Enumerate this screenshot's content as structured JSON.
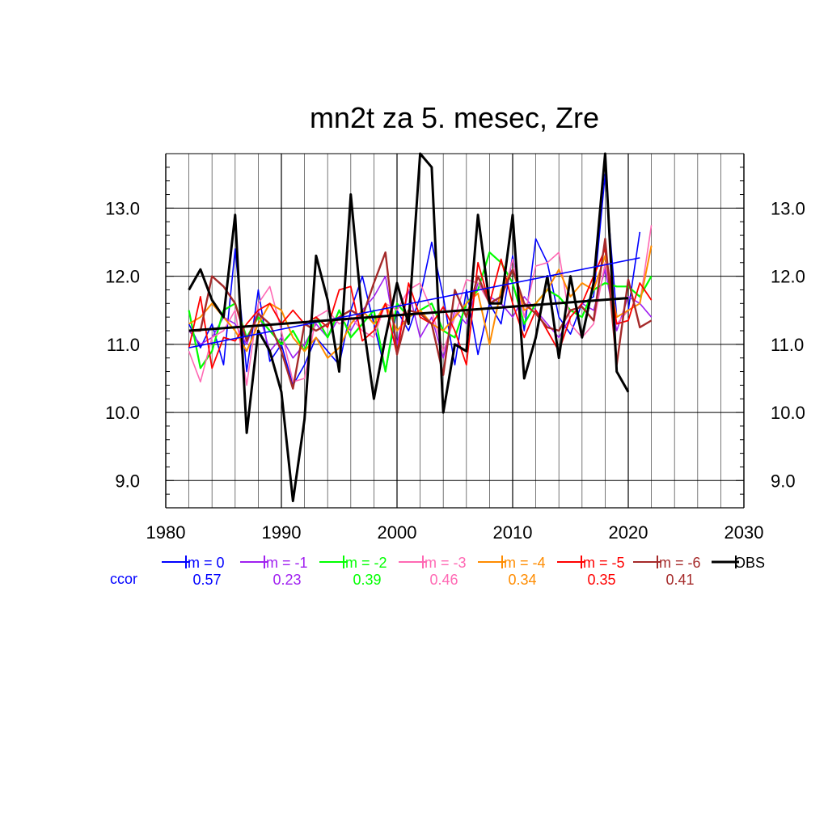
{
  "chart_data": {
    "type": "line",
    "title": "mn2t za 5. mesec, Zre",
    "xlabel": "",
    "ylabel": "",
    "xlim": [
      1980,
      2030
    ],
    "ylim": [
      8.6,
      13.8
    ],
    "xticks": [
      "1980",
      "1990",
      "2000",
      "2010",
      "2020",
      "2030"
    ],
    "yticks": [
      "9.0",
      "10.0",
      "11.0",
      "12.0",
      "13.0"
    ],
    "grid": true,
    "legend_position": "bottom",
    "ccor_label": "ccor",
    "series": [
      {
        "name": "lm = 0",
        "color": "#0000ff",
        "width": 1.6,
        "ccor": "0.57",
        "x": [
          1982,
          1983,
          1984,
          1985,
          1986,
          1987,
          1988,
          1989,
          1990,
          1991,
          1992,
          1993,
          1994,
          1995,
          1996,
          1997,
          1998,
          1999,
          2000,
          2001,
          2002,
          2003,
          2004,
          2005,
          2006,
          2007,
          2008,
          2009,
          2010,
          2011,
          2012,
          2013,
          2014,
          2015,
          2016,
          2017,
          2018,
          2019,
          2020,
          2021
        ],
        "y": [
          11.3,
          10.95,
          11.3,
          10.7,
          12.4,
          10.6,
          11.8,
          10.75,
          11.0,
          10.4,
          10.7,
          11.1,
          10.9,
          10.7,
          11.5,
          12.0,
          11.3,
          10.6,
          11.5,
          11.2,
          11.7,
          12.5,
          11.7,
          10.7,
          11.8,
          10.85,
          11.6,
          11.3,
          12.3,
          11.2,
          12.55,
          12.2,
          11.4,
          11.15,
          11.6,
          11.7,
          13.5,
          11.4,
          11.5,
          12.65
        ]
      },
      {
        "name": "lm = -1",
        "color": "#a020f0",
        "width": 1.6,
        "ccor": "0.23",
        "x": [
          1982,
          1983,
          1984,
          1985,
          1986,
          1987,
          1988,
          1989,
          1990,
          1991,
          1992,
          1993,
          1994,
          1995,
          1996,
          1997,
          1998,
          1999,
          2000,
          2001,
          2002,
          2003,
          2004,
          2005,
          2006,
          2007,
          2008,
          2009,
          2010,
          2011,
          2012,
          2013,
          2014,
          2015,
          2016,
          2017,
          2018,
          2019,
          2020,
          2021,
          2022
        ],
        "y": [
          11.2,
          11.0,
          11.1,
          11.4,
          11.3,
          11.0,
          11.5,
          10.9,
          11.1,
          10.8,
          11.0,
          11.3,
          11.1,
          11.4,
          11.2,
          11.5,
          11.7,
          12.0,
          11.0,
          11.8,
          11.1,
          11.4,
          10.8,
          11.5,
          11.3,
          11.9,
          11.7,
          11.6,
          11.4,
          11.7,
          11.5,
          11.3,
          11.1,
          11.4,
          11.6,
          11.5,
          12.1,
          11.2,
          11.7,
          11.6,
          11.4
        ]
      },
      {
        "name": "lm = -2",
        "color": "#00ff00",
        "width": 2.2,
        "ccor": "0.39",
        "x": [
          1982,
          1983,
          1984,
          1985,
          1986,
          1987,
          1988,
          1989,
          1990,
          1991,
          1992,
          1993,
          1994,
          1995,
          1996,
          1997,
          1998,
          1999,
          2000,
          2001,
          2002,
          2003,
          2004,
          2005,
          2006,
          2007,
          2008,
          2009,
          2010,
          2011,
          2012,
          2013,
          2014,
          2015,
          2016,
          2017,
          2018,
          2019,
          2020,
          2021,
          2022
        ],
        "y": [
          11.5,
          10.65,
          10.9,
          11.5,
          11.6,
          11.1,
          11.4,
          11.2,
          11.0,
          11.2,
          10.9,
          11.4,
          11.1,
          11.5,
          11.1,
          11.3,
          11.5,
          10.6,
          11.6,
          11.4,
          11.5,
          11.6,
          11.2,
          11.1,
          11.6,
          11.8,
          12.35,
          12.2,
          11.9,
          11.3,
          11.6,
          11.8,
          11.7,
          11.5,
          11.4,
          11.8,
          11.9,
          11.85,
          11.85,
          11.7,
          12.0
        ]
      },
      {
        "name": "lm = -3",
        "color": "#ff69b4",
        "width": 1.6,
        "ccor": "0.46",
        "x": [
          1982,
          1983,
          1984,
          1985,
          1986,
          1987,
          1988,
          1989,
          1990,
          1991,
          1992,
          1993,
          1994,
          1995,
          1996,
          1997,
          1998,
          1999,
          2000,
          2001,
          2002,
          2003,
          2004,
          2005,
          2006,
          2007,
          2008,
          2009,
          2010,
          2011,
          2012,
          2013,
          2014,
          2015,
          2016,
          2017,
          2018,
          2019,
          2020,
          2021,
          2022
        ],
        "y": [
          10.9,
          10.45,
          11.1,
          11.2,
          11.5,
          10.4,
          11.6,
          11.85,
          11.2,
          10.45,
          10.5,
          11.4,
          11.5,
          11.3,
          11.4,
          11.2,
          11.1,
          11.6,
          11.5,
          11.8,
          11.9,
          11.5,
          10.9,
          11.4,
          11.95,
          11.9,
          11.6,
          11.6,
          12.25,
          11.4,
          12.15,
          12.2,
          12.35,
          11.3,
          11.1,
          11.3,
          12.2,
          11.3,
          11.5,
          11.6,
          12.75
        ]
      },
      {
        "name": "lm = -4",
        "color": "#ff8c00",
        "width": 2.0,
        "ccor": "0.34",
        "x": [
          1982,
          1983,
          1984,
          1985,
          1986,
          1987,
          1988,
          1989,
          1990,
          1991,
          1992,
          1993,
          1994,
          1995,
          1996,
          1997,
          1998,
          1999,
          2000,
          2001,
          2002,
          2003,
          2004,
          2005,
          2006,
          2007,
          2008,
          2009,
          2010,
          2011,
          2012,
          2013,
          2014,
          2015,
          2016,
          2017,
          2018,
          2019,
          2020,
          2021,
          2022
        ],
        "y": [
          11.3,
          11.4,
          11.6,
          11.4,
          11.2,
          10.9,
          11.3,
          11.6,
          11.5,
          11.1,
          10.9,
          11.1,
          10.8,
          10.95,
          11.3,
          11.5,
          11.3,
          11.6,
          11.2,
          11.4,
          11.5,
          11.3,
          11.2,
          11.4,
          11.6,
          11.75,
          11.0,
          11.8,
          12.1,
          11.5,
          11.6,
          11.8,
          12.1,
          11.7,
          11.9,
          11.8,
          12.3,
          11.4,
          11.5,
          11.6,
          12.45
        ]
      },
      {
        "name": "lm = -5",
        "color": "#ff0000",
        "width": 1.8,
        "ccor": "0.35",
        "x": [
          1982,
          1983,
          1984,
          1985,
          1986,
          1987,
          1988,
          1989,
          1990,
          1991,
          1992,
          1993,
          1994,
          1995,
          1996,
          1997,
          1998,
          1999,
          2000,
          2001,
          2002,
          2003,
          2004,
          2005,
          2006,
          2007,
          2008,
          2009,
          2010,
          2011,
          2012,
          2013,
          2014,
          2015,
          2016,
          2017,
          2018,
          2019,
          2020,
          2021,
          2022
        ],
        "y": [
          10.95,
          11.7,
          10.65,
          11.1,
          11.05,
          11.3,
          11.5,
          11.6,
          11.3,
          11.5,
          11.3,
          11.4,
          11.25,
          11.8,
          11.85,
          11.05,
          11.2,
          11.6,
          10.85,
          11.9,
          11.4,
          11.3,
          11.55,
          11.2,
          10.7,
          12.2,
          11.6,
          12.25,
          11.6,
          11.1,
          11.5,
          11.2,
          10.9,
          11.4,
          11.6,
          12.0,
          12.4,
          11.3,
          11.35,
          11.9,
          11.65
        ]
      },
      {
        "name": "lm = -6",
        "color": "#a52a2a",
        "width": 2.4,
        "ccor": "0.41",
        "x": [
          1982,
          1983,
          1984,
          1985,
          1986,
          1987,
          1988,
          1989,
          1990,
          1991,
          1992,
          1993,
          1994,
          1995,
          1996,
          1997,
          1998,
          1999,
          2000,
          2001,
          2002,
          2003,
          2004,
          2005,
          2006,
          2007,
          2008,
          2009,
          2010,
          2011,
          2012,
          2013,
          2014,
          2015,
          2016,
          2017,
          2018,
          2019,
          2020,
          2021,
          2022
        ],
        "y": [
          11.2,
          11.2,
          12.0,
          11.85,
          11.6,
          11.05,
          11.45,
          11.3,
          10.9,
          10.35,
          11.3,
          11.2,
          11.3,
          11.4,
          11.5,
          11.4,
          11.9,
          12.35,
          10.85,
          11.5,
          11.45,
          11.3,
          10.55,
          11.8,
          11.4,
          12.0,
          11.6,
          11.7,
          12.1,
          11.6,
          11.45,
          11.25,
          11.2,
          11.5,
          11.55,
          11.35,
          12.55,
          10.7,
          11.95,
          11.25,
          11.35
        ]
      },
      {
        "name": "OBS",
        "color": "#000000",
        "width": 3.0,
        "ccor": "",
        "x": [
          1982,
          1983,
          1984,
          1985,
          1986,
          1987,
          1988,
          1989,
          1990,
          1991,
          1992,
          1993,
          1994,
          1995,
          1996,
          1997,
          1998,
          1999,
          2000,
          2001,
          2002,
          2003,
          2004,
          2005,
          2006,
          2007,
          2008,
          2009,
          2010,
          2011,
          2012,
          2013,
          2014,
          2015,
          2016,
          2017,
          2018,
          2019,
          2020
        ],
        "y": [
          11.8,
          12.1,
          11.65,
          11.4,
          12.9,
          9.7,
          11.2,
          10.9,
          10.3,
          8.7,
          9.9,
          12.3,
          11.65,
          10.6,
          13.2,
          11.4,
          10.2,
          11.1,
          11.9,
          11.3,
          13.8,
          13.6,
          10.0,
          11.0,
          10.9,
          12.9,
          11.6,
          11.6,
          12.9,
          10.5,
          11.1,
          12.0,
          10.8,
          12.0,
          11.1,
          11.9,
          13.8,
          10.6,
          10.3
        ]
      }
    ],
    "trend_lines": [
      {
        "color": "#0000ff",
        "width": 1.6,
        "x": [
          1982,
          2021
        ],
        "y": [
          10.95,
          12.27
        ]
      },
      {
        "color": "#000000",
        "width": 3.0,
        "x": [
          1982,
          2020
        ],
        "y": [
          11.2,
          11.68
        ]
      }
    ]
  }
}
